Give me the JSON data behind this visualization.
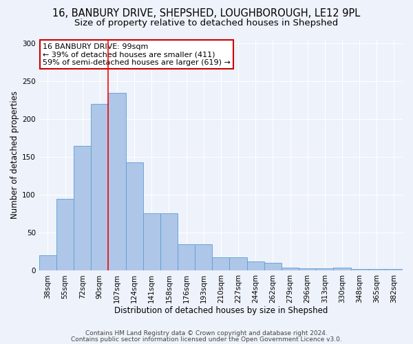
{
  "title1": "16, BANBURY DRIVE, SHEPSHED, LOUGHBOROUGH, LE12 9PL",
  "title2": "Size of property relative to detached houses in Shepshed",
  "xlabel": "Distribution of detached houses by size in Shepshed",
  "ylabel": "Number of detached properties",
  "categories": [
    "38sqm",
    "55sqm",
    "72sqm",
    "90sqm",
    "107sqm",
    "124sqm",
    "141sqm",
    "158sqm",
    "176sqm",
    "193sqm",
    "210sqm",
    "227sqm",
    "244sqm",
    "262sqm",
    "279sqm",
    "296sqm",
    "313sqm",
    "330sqm",
    "348sqm",
    "365sqm",
    "382sqm"
  ],
  "values": [
    20,
    95,
    165,
    220,
    235,
    143,
    76,
    76,
    35,
    35,
    18,
    18,
    12,
    10,
    4,
    3,
    3,
    4,
    2,
    2,
    2
  ],
  "bar_color": "#aec6e8",
  "bar_edge_color": "#5a9fd4",
  "background_color": "#eef2fa",
  "grid_color": "#ffffff",
  "red_line_index": 4,
  "annotation_text": "16 BANBURY DRIVE: 99sqm\n← 39% of detached houses are smaller (411)\n59% of semi-detached houses are larger (619) →",
  "annotation_box_color": "#ffffff",
  "annotation_box_edge_color": "#cc0000",
  "ylim": [
    0,
    305
  ],
  "yticks": [
    0,
    50,
    100,
    150,
    200,
    250,
    300
  ],
  "footer1": "Contains HM Land Registry data © Crown copyright and database right 2024.",
  "footer2": "Contains public sector information licensed under the Open Government Licence v3.0.",
  "title1_fontsize": 10.5,
  "title2_fontsize": 9.5,
  "xlabel_fontsize": 8.5,
  "ylabel_fontsize": 8.5,
  "tick_fontsize": 7.5,
  "annotation_fontsize": 8,
  "footer_fontsize": 6.5
}
